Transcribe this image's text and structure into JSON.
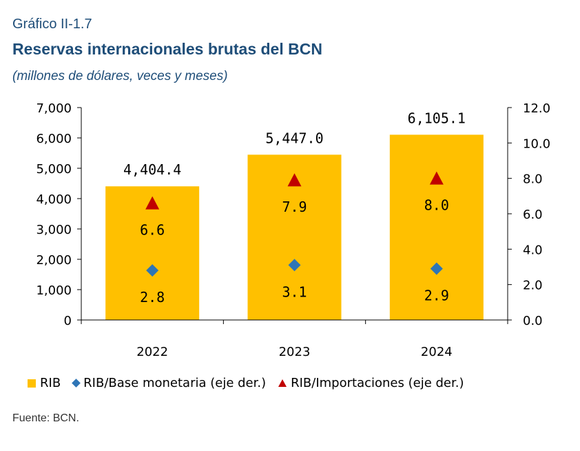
{
  "header": {
    "subtitle": "Gráfico II-1.7",
    "title": "Reservas internacionales brutas del BCN",
    "units": "(millones de dólares, veces y meses)"
  },
  "source": "Fuente: BCN.",
  "colors": {
    "bar": "#FFC000",
    "diamond": "#2E75B6",
    "triangle": "#C00000",
    "title": "#1F4E79"
  },
  "chart_data": {
    "type": "bar",
    "categories": [
      "2022",
      "2023",
      "2024"
    ],
    "series": [
      {
        "name": "RIB",
        "type": "bar",
        "axis": "left",
        "values": [
          4404.4,
          5447.0,
          6105.1
        ],
        "labels": [
          "4,404.4",
          "5,447.0",
          "6,105.1"
        ]
      },
      {
        "name": "RIB/Base monetaria (eje der.)",
        "type": "scatter",
        "marker": "diamond",
        "axis": "right",
        "values": [
          2.8,
          3.1,
          2.9
        ],
        "labels": [
          "2.8",
          "3.1",
          "2.9"
        ]
      },
      {
        "name": "RIB/Importaciones (eje der.)",
        "type": "scatter",
        "marker": "triangle",
        "axis": "right",
        "values": [
          6.6,
          7.9,
          8.0
        ],
        "labels": [
          "6.6",
          "7.9",
          "8.0"
        ]
      }
    ],
    "y_left": {
      "min": 0,
      "max": 7000,
      "ticks": [
        "0",
        "1,000",
        "2,000",
        "3,000",
        "4,000",
        "5,000",
        "6,000",
        "7,000"
      ]
    },
    "y_right": {
      "min": 0,
      "max": 12,
      "ticks": [
        "0.0",
        "2.0",
        "4.0",
        "6.0",
        "8.0",
        "10.0",
        "12.0"
      ]
    },
    "grid": false,
    "legend_position": "bottom"
  }
}
